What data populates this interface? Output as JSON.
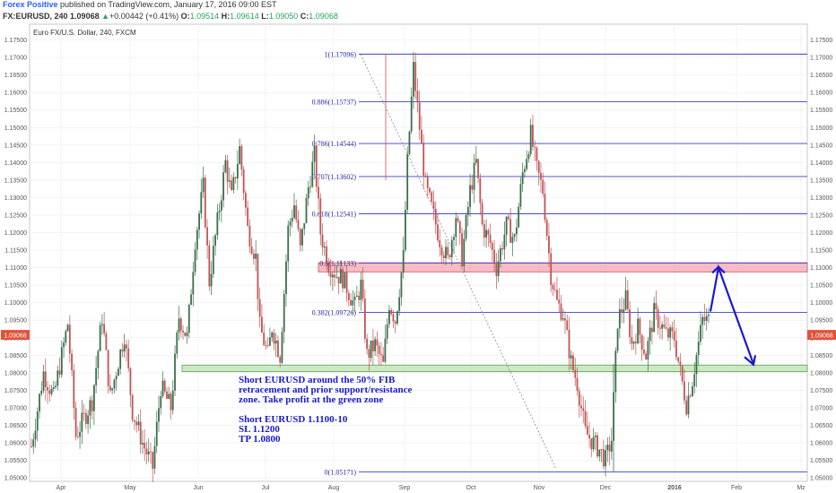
{
  "header": {
    "author": "Forex Positive",
    "published": "published on TradingView.com, January 17, 2016 09:00 EST",
    "symbol": "FX:EURUSD, 240",
    "last": "1.09068",
    "change_arrow": "▲",
    "change": "+0.00442 (+0.41%)",
    "o_label": "O:",
    "o_value": "1.09514",
    "h_label": "H:",
    "h_value": "1.09614",
    "l_label": "L:",
    "l_value": "1.09050",
    "c_label": "C:",
    "c_value": "1.09068"
  },
  "chart_title": "Euro FX/U.S. Dollar, 240, FXCM",
  "price_tag": "1.09068",
  "annotation": {
    "lines": [
      "Short EURUSD around the 50% FIB",
      "retracement and prior support/resistance",
      "zone. Take profit at the green zone",
      "",
      "Short EURUSD 1.1100-10",
      "SL 1.1200",
      "TP 1.0800"
    ]
  },
  "colors": {
    "fib_line": "#3f3fcc",
    "resistance_zone": "#f4a6b0",
    "support_zone": "#bfe3b4",
    "arrow": "#1a1acc",
    "price_tag": "#e0523a",
    "candle_up": "#3c6e4b",
    "candle_down": "#c05454"
  },
  "chart_data": {
    "type": "candlestick",
    "title": "Euro FX/U.S. Dollar, 240, FXCM",
    "ylim": [
      1.049,
      1.1795
    ],
    "y_ticks": [
      "1.17500",
      "1.17000",
      "1.16500",
      "1.16000",
      "1.15500",
      "1.15000",
      "1.14500",
      "1.14000",
      "1.13500",
      "1.13000",
      "1.12500",
      "1.12000",
      "1.11500",
      "1.11000",
      "1.10500",
      "1.10000",
      "1.09500",
      "1.09000",
      "1.08500",
      "1.08000",
      "1.07500",
      "1.07000",
      "1.06500",
      "1.06000",
      "1.05500",
      "1.05000"
    ],
    "x_ticks": [
      "Apr",
      "May",
      "Jun",
      "Jul",
      "Aug",
      "Sep",
      "Oct",
      "Nov",
      "Dec",
      "2016",
      "Feb",
      "Mz"
    ],
    "grid": true,
    "fib_levels": [
      {
        "label": "1(1.17096)",
        "value": 1.17096
      },
      {
        "label": "0.886(1.15737)",
        "value": 1.15737
      },
      {
        "label": "0.786(1.14544)",
        "value": 1.14544
      },
      {
        "label": "0.707(1.13602)",
        "value": 1.13602
      },
      {
        "label": "0.618(1.12541)",
        "value": 1.12541
      },
      {
        "label": "0.5(1.11133)",
        "value": 1.11133
      },
      {
        "label": "0.382(1.09726)",
        "value": 1.09726
      },
      {
        "label": "0(1.05171)",
        "value": 1.05171
      }
    ],
    "zones": [
      {
        "name": "resistance",
        "from": 1.1088,
        "to": 1.1114
      },
      {
        "name": "support",
        "from": 1.0803,
        "to": 1.0822
      }
    ],
    "waypoints": [
      [
        0,
        1.059
      ],
      [
        6,
        1.08
      ],
      [
        11,
        1.073
      ],
      [
        18,
        1.094
      ],
      [
        22,
        1.062
      ],
      [
        30,
        1.072
      ],
      [
        35,
        1.096
      ],
      [
        39,
        1.073
      ],
      [
        46,
        1.091
      ],
      [
        50,
        1.069
      ],
      [
        55,
        1.06
      ],
      [
        60,
        1.053
      ],
      [
        64,
        1.076
      ],
      [
        69,
        1.07
      ],
      [
        73,
        1.096
      ],
      [
        77,
        1.09
      ],
      [
        81,
        1.118
      ],
      [
        85,
        1.133
      ],
      [
        88,
        1.106
      ],
      [
        92,
        1.123
      ],
      [
        96,
        1.14
      ],
      [
        99,
        1.13
      ],
      [
        103,
        1.144
      ],
      [
        107,
        1.121
      ],
      [
        111,
        1.113
      ],
      [
        113,
        1.093
      ],
      [
        117,
        1.085
      ],
      [
        119,
        1.093
      ],
      [
        123,
        1.085
      ],
      [
        127,
        1.121
      ],
      [
        130,
        1.128
      ],
      [
        133,
        1.115
      ],
      [
        137,
        1.133
      ],
      [
        140,
        1.142
      ],
      [
        143,
        1.12
      ],
      [
        147,
        1.111
      ],
      [
        151,
        1.108
      ],
      [
        154,
        1.107
      ],
      [
        157,
        1.103
      ],
      [
        160,
        1.099
      ],
      [
        163,
        1.105
      ],
      [
        166,
        1.085
      ],
      [
        170,
        1.088
      ],
      [
        174,
        1.082
      ],
      [
        177,
        1.1
      ],
      [
        180,
        1.095
      ],
      [
        184,
        1.113
      ],
      [
        186,
        1.14
      ],
      [
        189,
        1.167
      ],
      [
        192,
        1.15
      ],
      [
        195,
        1.133
      ],
      [
        198,
        1.127
      ],
      [
        202,
        1.118
      ],
      [
        206,
        1.112
      ],
      [
        210,
        1.125
      ],
      [
        213,
        1.113
      ],
      [
        217,
        1.132
      ],
      [
        220,
        1.14
      ],
      [
        223,
        1.122
      ],
      [
        227,
        1.117
      ],
      [
        230,
        1.11
      ],
      [
        235,
        1.122
      ],
      [
        239,
        1.118
      ],
      [
        243,
        1.137
      ],
      [
        247,
        1.148
      ],
      [
        250,
        1.138
      ],
      [
        253,
        1.132
      ],
      [
        257,
        1.108
      ],
      [
        260,
        1.1
      ],
      [
        263,
        1.097
      ],
      [
        267,
        1.083
      ],
      [
        270,
        1.077
      ],
      [
        274,
        1.063
      ],
      [
        278,
        1.06
      ],
      [
        281,
        1.058
      ],
      [
        284,
        1.055
      ],
      [
        287,
        1.061
      ],
      [
        290,
        1.095
      ],
      [
        294,
        1.101
      ],
      [
        297,
        1.088
      ],
      [
        300,
        1.093
      ],
      [
        304,
        1.085
      ],
      [
        308,
        1.097
      ],
      [
        312,
        1.093
      ],
      [
        314,
        1.091
      ],
      [
        318,
        1.09
      ],
      [
        321,
        1.08
      ],
      [
        324,
        1.071
      ],
      [
        327,
        1.078
      ],
      [
        329,
        1.085
      ],
      [
        332,
        1.095
      ],
      [
        335,
        1.095
      ]
    ],
    "months": [
      "Apr",
      "May",
      "Jun",
      "Jul",
      "Aug",
      "Sep",
      "Oct",
      "Nov",
      "Dec",
      "2016",
      "Feb",
      "Mz"
    ]
  }
}
